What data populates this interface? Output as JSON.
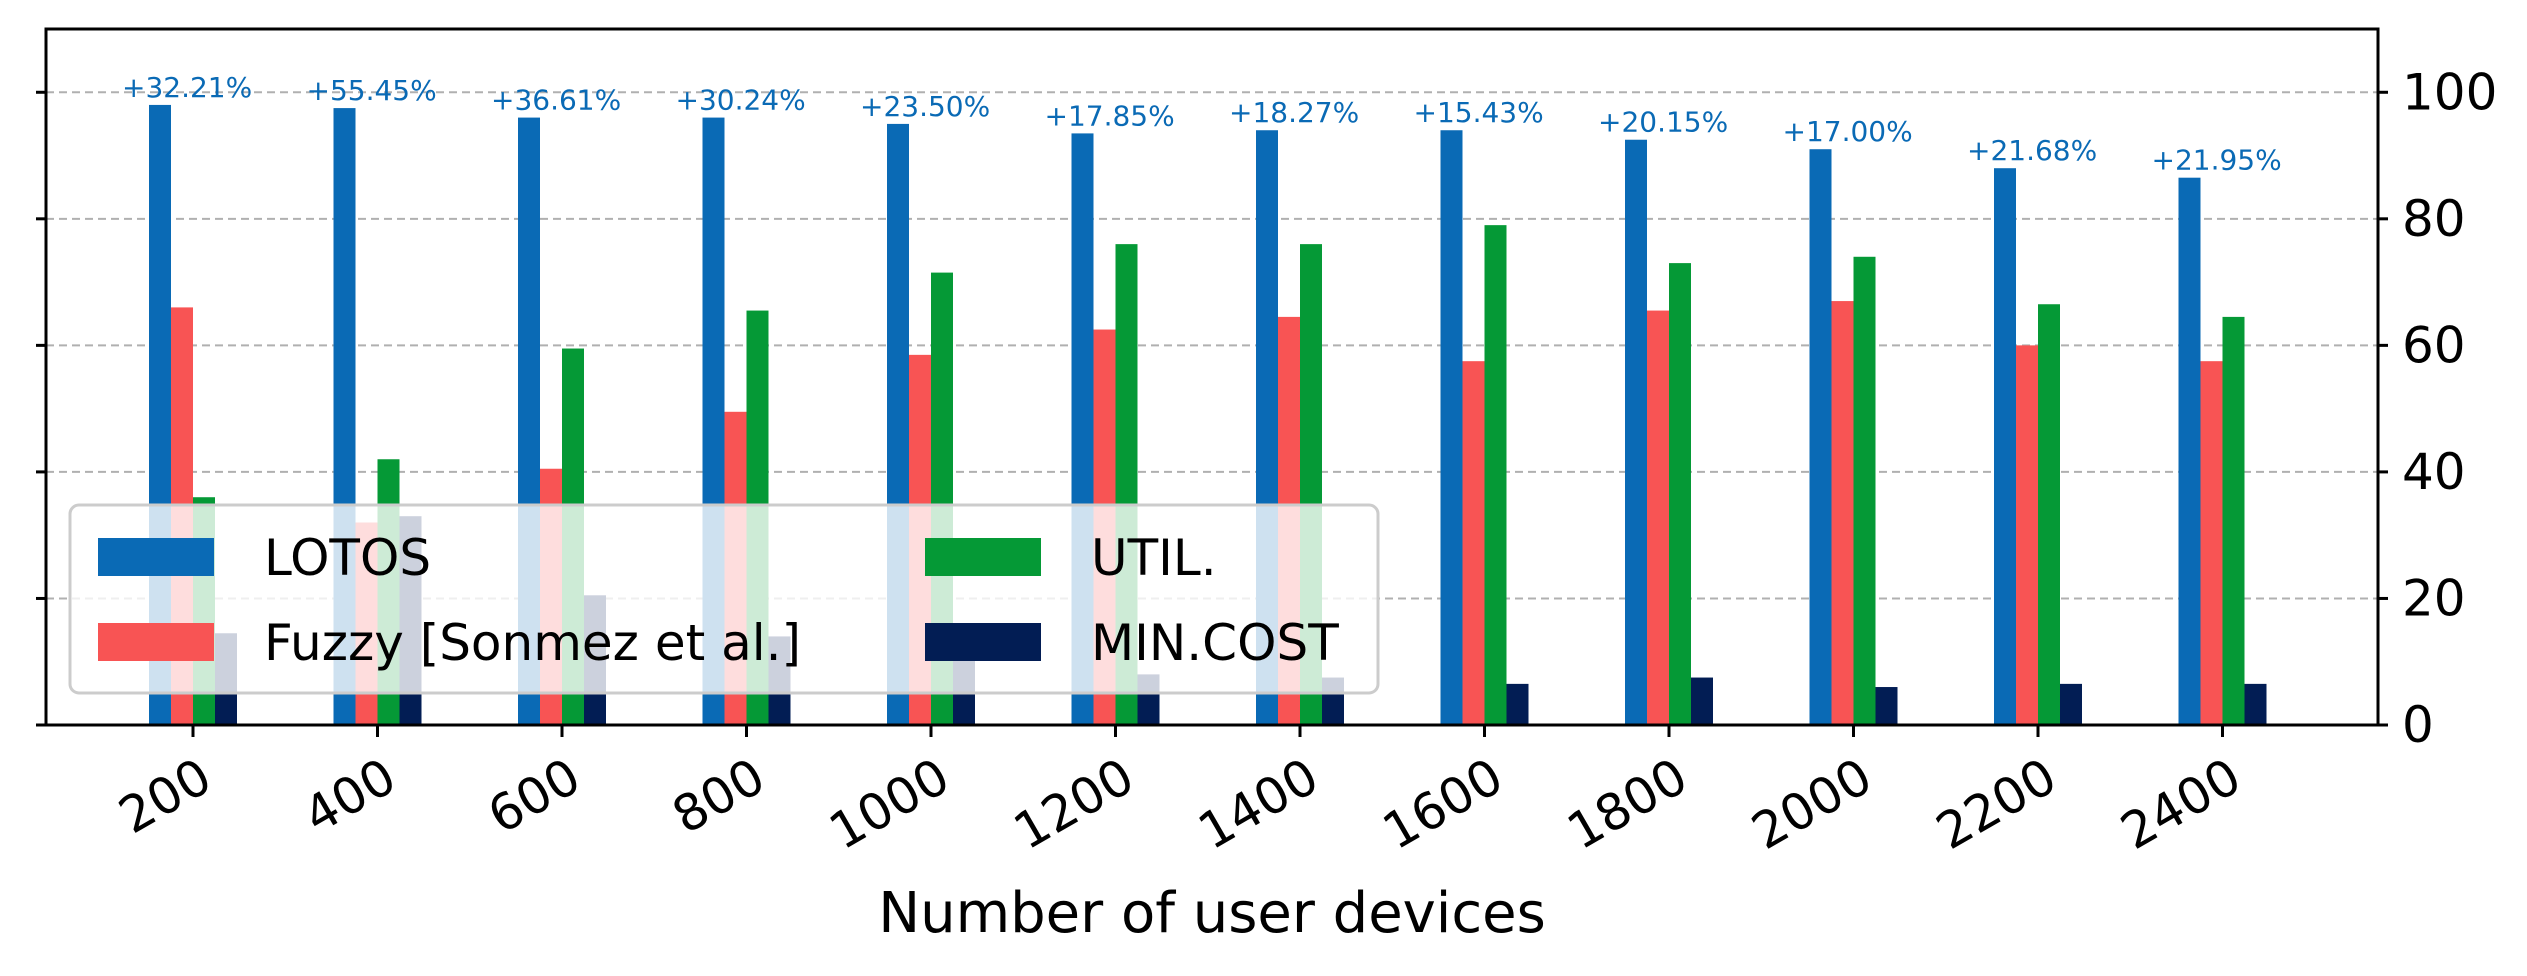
{
  "chart_data": {
    "type": "bar",
    "title": "",
    "xlabel": "Number of user devices",
    "ylabel": "",
    "categories": [
      "200",
      "400",
      "600",
      "800",
      "1000",
      "1200",
      "1400",
      "1600",
      "1800",
      "2000",
      "2200",
      "2400"
    ],
    "series": [
      {
        "name": "LOTOS",
        "color": "#0a6ab5",
        "values": [
          98,
          97.5,
          96,
          96,
          95,
          93.5,
          94,
          94,
          92.5,
          91,
          88,
          86.5
        ]
      },
      {
        "name": "Fuzzy [Sonmez et al.]",
        "color": "#f85454",
        "values": [
          66,
          32,
          40.5,
          49.5,
          58.5,
          62.5,
          64.5,
          57.5,
          65.5,
          67,
          60,
          57.5
        ]
      },
      {
        "name": "UTIL.",
        "color": "#059936",
        "values": [
          36,
          42,
          59.5,
          65.5,
          71.5,
          76,
          76,
          79,
          73,
          74,
          66.5,
          64.5
        ]
      },
      {
        "name": "MIN.COST",
        "color": "#021d54",
        "values": [
          14.5,
          33,
          20.5,
          14,
          12,
          8,
          7.5,
          6.5,
          7.5,
          6,
          6.5,
          6.5
        ]
      }
    ],
    "annotations": [
      "+32.21%",
      "+55.45%",
      "+36.61%",
      "+30.24%",
      "+23.50%",
      "+17.85%",
      "+18.27%",
      "+15.43%",
      "+20.15%",
      "+17.00%",
      "+21.68%",
      "+21.95%"
    ],
    "yticks": [
      0,
      20,
      40,
      60,
      80,
      100
    ],
    "ylim": [
      0,
      110
    ],
    "y_axis_side": "right",
    "grid": "y-dashed",
    "legend_placement": "lower-left",
    "legend_columns": 2
  }
}
